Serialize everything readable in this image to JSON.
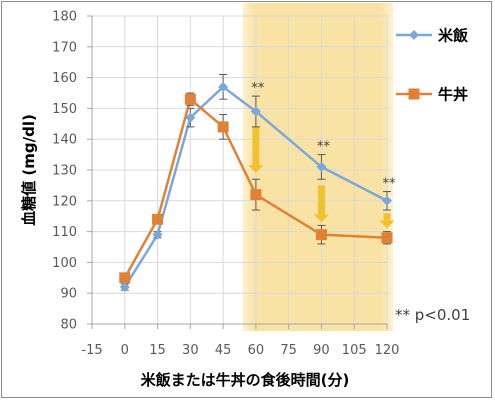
{
  "chart_data": {
    "type": "line",
    "xlabel": "米飯または牛丼の食後時間(分)",
    "ylabel": "血糖値 (mg/dl)",
    "x_ticks": [
      -15,
      0,
      15,
      30,
      45,
      60,
      75,
      90,
      105,
      120
    ],
    "xlim": [
      -15,
      120
    ],
    "y_ticks": [
      80,
      90,
      100,
      110,
      120,
      130,
      140,
      150,
      160,
      170,
      180
    ],
    "ylim": [
      80,
      180
    ],
    "highlight_region_x": [
      54,
      120
    ],
    "series": [
      {
        "name": "米飯",
        "color": "#7ba7dc",
        "marker": "diamond",
        "x": [
          0,
          15,
          30,
          45,
          60,
          90,
          120
        ],
        "values": [
          92,
          109,
          147,
          157,
          149,
          131,
          120
        ],
        "error": [
          1,
          1,
          3,
          4,
          5,
          4,
          3
        ]
      },
      {
        "name": "牛丼",
        "color": "#e08236",
        "marker": "square",
        "x": [
          0,
          15,
          30,
          45,
          60,
          90,
          120
        ],
        "values": [
          95,
          114,
          153,
          144,
          122,
          109,
          108
        ],
        "error": [
          1,
          1,
          2,
          4,
          5,
          3,
          2
        ]
      }
    ],
    "annotations": [
      {
        "x": 60,
        "text": "**"
      },
      {
        "x": 90,
        "text": "**"
      },
      {
        "x": 120,
        "text": "**"
      }
    ],
    "arrows": [
      {
        "x": 60,
        "from": 144,
        "to": 129
      },
      {
        "x": 90,
        "from": 125,
        "to": 113
      },
      {
        "x": 120,
        "from": 116,
        "to": 111
      }
    ],
    "note": "** p<0.01",
    "legend_position": "right"
  }
}
